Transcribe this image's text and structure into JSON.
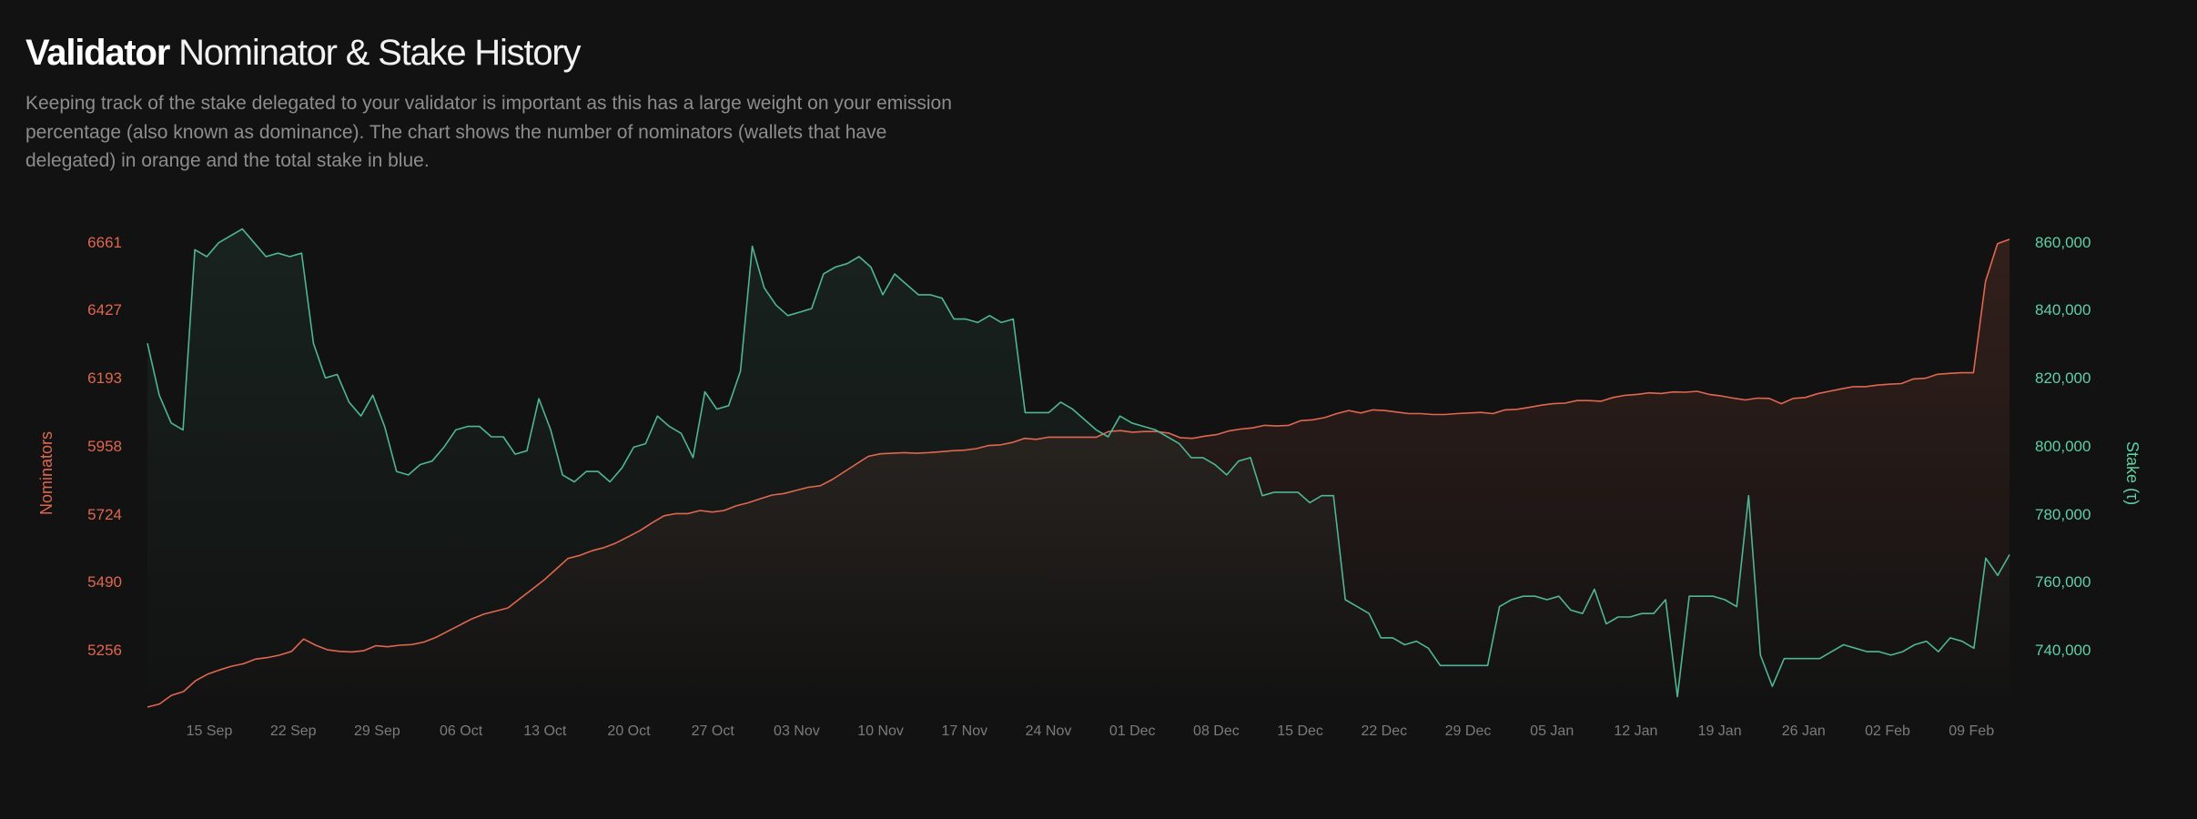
{
  "header": {
    "title_bold": "Validator",
    "title_rest": "Nominator & Stake History",
    "description": "Keeping track of the stake delegated to your validator is important as this has a large weight on your emission percentage (also known as dominance). The chart shows the number of nominators (wallets that have delegated) in orange and the total stake in blue."
  },
  "colors": {
    "nominators": "#e0674f",
    "stake": "#4fb594",
    "background": "#121212"
  },
  "chart_data": {
    "type": "line",
    "x_tick_labels": [
      "15 Sep",
      "22 Sep",
      "29 Sep",
      "06 Oct",
      "13 Oct",
      "20 Oct",
      "27 Oct",
      "03 Nov",
      "10 Nov",
      "17 Nov",
      "24 Nov",
      "01 Dec",
      "08 Dec",
      "15 Dec",
      "22 Dec",
      "29 Dec",
      "05 Jan",
      "12 Jan",
      "19 Jan",
      "26 Jan",
      "02 Feb",
      "09 Feb"
    ],
    "left_axis": {
      "label": "Nominators",
      "ticks": [
        "6661",
        "6427",
        "6193",
        "5958",
        "5724",
        "5490",
        "5256"
      ],
      "range": [
        5150,
        6661
      ]
    },
    "right_axis": {
      "label": "Stake (τ)",
      "ticks": [
        "860,000",
        "840,000",
        "820,000",
        "800,000",
        "780,000",
        "760,000",
        "740,000"
      ],
      "range": [
        725000,
        860000
      ]
    },
    "series": [
      {
        "axis": "left",
        "values": [
          5150,
          5160,
          5188,
          5200,
          5235,
          5256,
          5270,
          5282,
          5290,
          5305,
          5310,
          5318,
          5330,
          5370,
          5350,
          5335,
          5330,
          5328,
          5332,
          5348,
          5345,
          5350,
          5352,
          5360,
          5375,
          5395,
          5415,
          5435,
          5450,
          5460,
          5470,
          5500,
          5530,
          5560,
          5595,
          5630,
          5640,
          5655,
          5665,
          5680,
          5700,
          5720,
          5745,
          5768,
          5775,
          5775,
          5785,
          5780,
          5785,
          5800,
          5810,
          5823,
          5835,
          5840,
          5850,
          5860,
          5865,
          5885,
          5910,
          5935,
          5960,
          5968,
          5970,
          5972,
          5970,
          5972,
          5975,
          5978,
          5980,
          5985,
          5995,
          5997,
          6005,
          6018,
          6015,
          6022,
          6022,
          6022,
          6022,
          6022,
          6040,
          6043,
          6038,
          6040,
          6040,
          6035,
          6020,
          6018,
          6025,
          6030,
          6042,
          6048,
          6052,
          6060,
          6058,
          6060,
          6075,
          6078,
          6085,
          6098,
          6108,
          6100,
          6110,
          6108,
          6103,
          6098,
          6098,
          6095,
          6095,
          6098,
          6100,
          6102,
          6098,
          6110,
          6112,
          6118,
          6125,
          6130,
          6132,
          6140,
          6140,
          6138,
          6150,
          6157,
          6160,
          6165,
          6163,
          6168,
          6167,
          6170,
          6160,
          6155,
          6148,
          6142,
          6148,
          6147,
          6130,
          6147,
          6150,
          6162,
          6170,
          6178,
          6185,
          6185,
          6190,
          6193,
          6195,
          6210,
          6212,
          6225,
          6228,
          6230,
          6230,
          6525,
          6647,
          6661
        ]
      },
      {
        "axis": "right",
        "values": [
          830000,
          815000,
          807000,
          805000,
          857000,
          855000,
          859000,
          861000,
          863000,
          859000,
          855000,
          856000,
          855000,
          856000,
          830000,
          820000,
          821000,
          813000,
          809000,
          815000,
          806000,
          793000,
          792000,
          795000,
          796000,
          800000,
          805000,
          806000,
          806000,
          803000,
          803000,
          798000,
          799000,
          814000,
          805000,
          792000,
          790000,
          793000,
          793000,
          790000,
          794000,
          800000,
          801000,
          809000,
          806000,
          804000,
          797000,
          816000,
          811000,
          812000,
          822000,
          858000,
          846000,
          841000,
          838000,
          839000,
          840000,
          850000,
          852000,
          853000,
          855000,
          852000,
          844000,
          850000,
          847000,
          844000,
          844000,
          843000,
          837000,
          837000,
          836000,
          838000,
          836000,
          837000,
          810000,
          810000,
          810000,
          813000,
          811000,
          808000,
          805000,
          803000,
          809000,
          807000,
          806000,
          805000,
          803000,
          801000,
          797000,
          797000,
          795000,
          792000,
          796000,
          797000,
          786000,
          787000,
          787000,
          787000,
          784000,
          786000,
          786000,
          756000,
          754000,
          752000,
          745000,
          745000,
          743000,
          744000,
          742000,
          737000,
          737000,
          737000,
          737000,
          737000,
          754000,
          756000,
          757000,
          757000,
          756000,
          757000,
          753000,
          752000,
          759000,
          749000,
          751000,
          751000,
          752000,
          752000,
          756000,
          728000,
          757000,
          757000,
          757000,
          756000,
          754000,
          786000,
          740000,
          731000,
          739000,
          739000,
          739000,
          739000,
          741000,
          743000,
          742000,
          741000,
          741000,
          740000,
          741000,
          743000,
          744000,
          741000,
          745000,
          744000,
          742000,
          768000,
          763000,
          769000
        ]
      }
    ]
  }
}
